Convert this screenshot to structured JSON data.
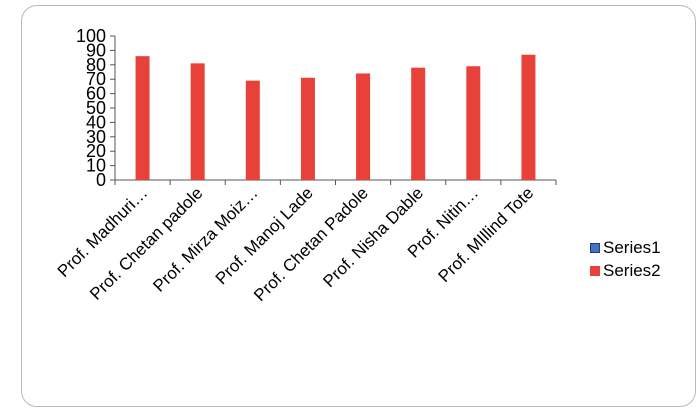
{
  "chart_data": {
    "type": "bar",
    "title": "",
    "xlabel": "",
    "ylabel": "",
    "categories": [
      "Prof. Madhuri…",
      "Prof. Chetan padole",
      "Prof. Mirza Moiz…",
      "Prof. Manoj Lade",
      "Prof. Chetan Padole",
      "Prof. Nisha Dable",
      "Prof. Nitin…",
      "Prof. MIllind Tote"
    ],
    "series": [
      {
        "name": "Series1",
        "values": [
          0,
          0,
          0,
          0,
          0,
          0,
          0,
          0
        ]
      },
      {
        "name": "Series2",
        "values": [
          86,
          81,
          69,
          71,
          74,
          78,
          79,
          87
        ]
      }
    ],
    "ylim": [
      0,
      100
    ],
    "yticks": [
      0,
      10,
      20,
      30,
      40,
      50,
      60,
      70,
      80,
      90,
      100
    ],
    "grid": false,
    "legend": "right"
  },
  "colors": {
    "series1": "#4472c4",
    "series2": "#e8413a",
    "axis": "#555555",
    "frame": "#b9b9b9"
  }
}
